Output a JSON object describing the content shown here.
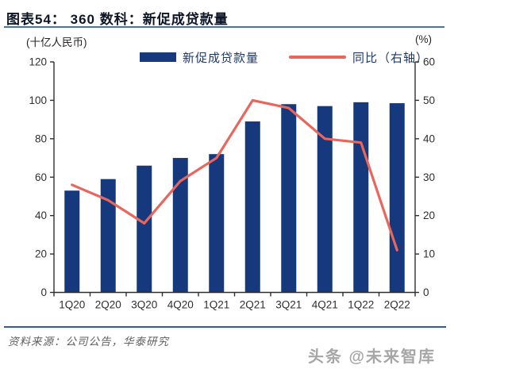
{
  "header": {
    "title": "图表54： 360 数科：新促成贷款量"
  },
  "axis_units": {
    "left": "(十亿人民币)",
    "right": "(%)"
  },
  "legend": {
    "bar_label": "新促成贷款量",
    "line_label": "同比（右轴）"
  },
  "chart_data": {
    "type": "bar",
    "subtype": "bar+line dual axis",
    "title": "360 数科：新促成贷款量",
    "categories": [
      "1Q20",
      "2Q20",
      "3Q20",
      "4Q20",
      "1Q21",
      "2Q21",
      "3Q21",
      "4Q21",
      "1Q22",
      "2Q22"
    ],
    "series": [
      {
        "name": "新促成贷款量",
        "type": "bar",
        "axis": "left",
        "values": [
          53,
          59,
          66,
          70,
          72,
          89,
          98,
          97,
          99,
          98.5
        ]
      },
      {
        "name": "同比（右轴）",
        "type": "line",
        "axis": "right",
        "values": [
          28,
          24,
          18,
          29,
          35,
          50,
          48,
          40,
          39,
          11
        ]
      }
    ],
    "left_axis": {
      "label": "十亿人民币",
      "min": 0,
      "max": 120,
      "ticks": [
        0,
        20,
        40,
        60,
        80,
        100,
        120
      ]
    },
    "right_axis": {
      "label": "%",
      "min": 0,
      "max": 60,
      "ticks": [
        0,
        10,
        20,
        30,
        40,
        50,
        60
      ]
    },
    "grid": false,
    "legend_position": "top"
  },
  "source": {
    "text": "资料来源：公司公告，华泰研究"
  },
  "watermark": {
    "text": "头条 @未来智库"
  },
  "colors": {
    "bar": "#16387c",
    "line": "#e8665c",
    "axis": "#2f2f2f",
    "tick_text": "#2f2f2f",
    "title_rule": "#44799f",
    "bottom_rule": "#2e5e94",
    "legend_text": "#1f3864"
  }
}
